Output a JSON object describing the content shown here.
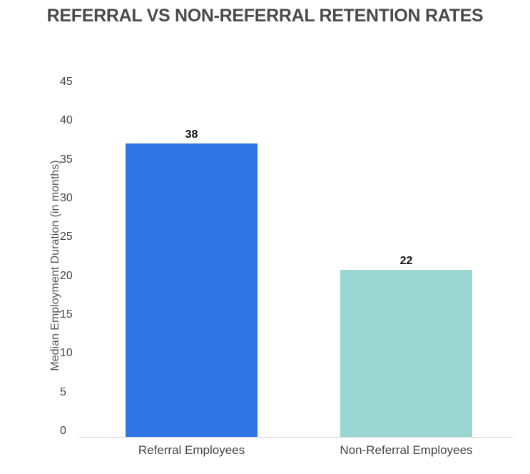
{
  "chart_data": {
    "type": "bar",
    "title": "REFERRAL VS NON-REFERRAL RETENTION RATES",
    "xlabel": "",
    "ylabel": "Median Employment Duration (in months)",
    "categories": [
      "Referral Employees",
      "Non-Referral Employees"
    ],
    "values": [
      38,
      22
    ],
    "data_labels": [
      "38",
      "22"
    ],
    "colors": [
      "#2f76e4",
      "#9ad6d1"
    ],
    "ylim": [
      0,
      45
    ],
    "yticks": [
      0,
      5,
      10,
      15,
      20,
      25,
      30,
      35,
      40,
      45
    ],
    "ytick_labels": [
      "0",
      "5",
      "10",
      "15",
      "20",
      "25",
      "30",
      "35",
      "40",
      "45"
    ],
    "grid": false,
    "legend": null
  }
}
